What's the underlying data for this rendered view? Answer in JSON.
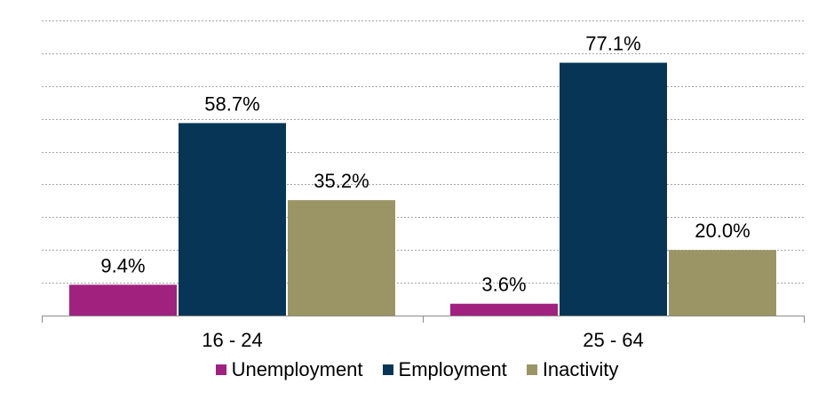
{
  "chart_data": {
    "type": "bar",
    "categories": [
      "16 - 24",
      "25 - 64"
    ],
    "series": [
      {
        "name": "Unemployment",
        "values": [
          9.4,
          3.6
        ],
        "color": "#a0217e",
        "labels": [
          "9.4%",
          "3.6%"
        ]
      },
      {
        "name": "Employment",
        "values": [
          58.7,
          77.1
        ],
        "color": "#063555",
        "labels": [
          "58.7%",
          "77.1%"
        ]
      },
      {
        "name": "Inactivity",
        "values": [
          35.2,
          20.0
        ],
        "color": "#9b9565",
        "labels": [
          "35.2%",
          "20.0%"
        ]
      }
    ],
    "ylim": [
      0,
      90
    ],
    "grid": true,
    "legend_position": "bottom",
    "title": "",
    "xlabel": "",
    "ylabel": ""
  }
}
